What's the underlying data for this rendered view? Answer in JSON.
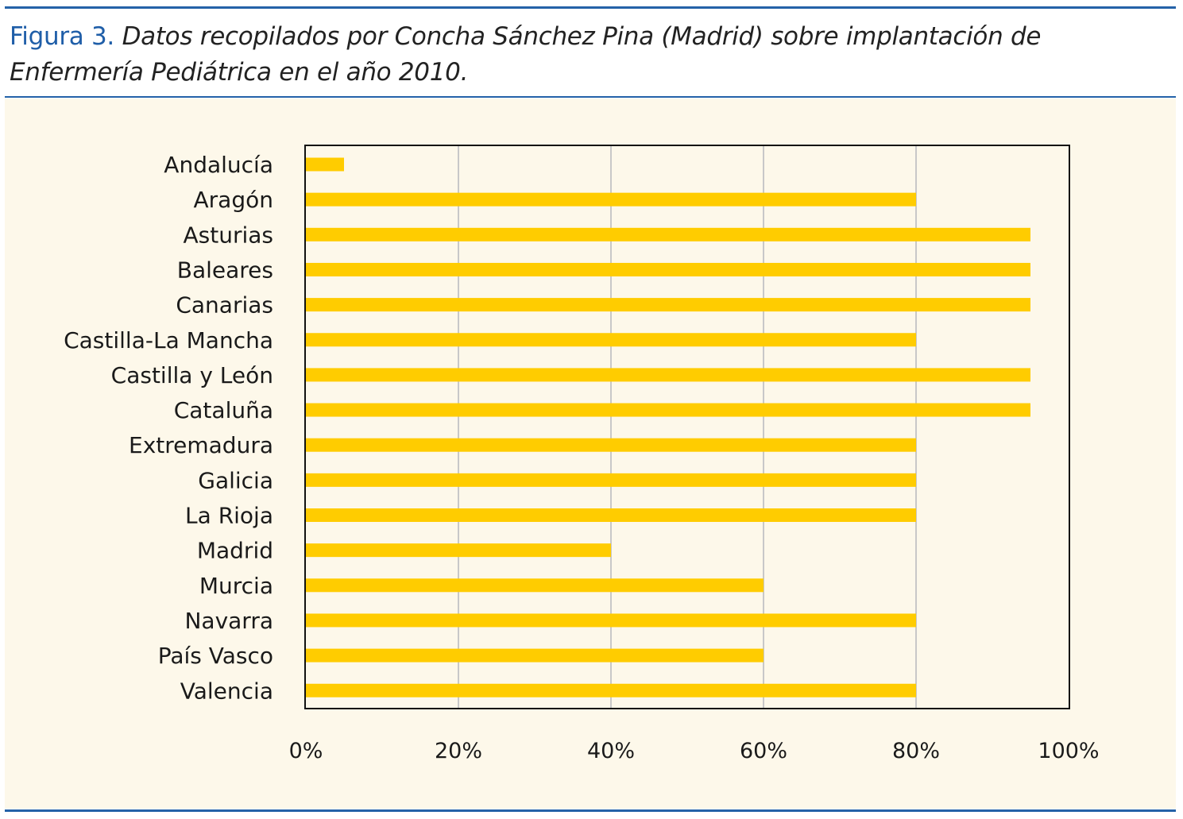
{
  "figure": {
    "label": "Figura 3.",
    "caption": "Datos recopilados por Concha Sánchez Pina (Madrid) sobre implantación de Enfermería Pediátrica en el año 2010."
  },
  "colors": {
    "bar": "#ffcc00",
    "rule": "#2462a8",
    "panel": "#fdf8ea",
    "grid": "#c8c8c8"
  },
  "chart_data": {
    "type": "bar",
    "orientation": "horizontal",
    "title": "",
    "xlabel": "",
    "ylabel": "",
    "xlim": [
      0,
      100
    ],
    "grid": "vertical",
    "categories": [
      "Andalucía",
      "Aragón",
      "Asturias",
      "Baleares",
      "Canarias",
      "Castilla-La Mancha",
      "Castilla y León",
      "Cataluña",
      "Extremadura",
      "Galicia",
      "La Rioja",
      "Madrid",
      "Murcia",
      "Navarra",
      "País Vasco",
      "Valencia"
    ],
    "values": [
      5,
      80,
      95,
      95,
      95,
      80,
      95,
      95,
      80,
      80,
      80,
      40,
      60,
      80,
      60,
      80
    ],
    "ticks": [
      0,
      20,
      40,
      60,
      80,
      100
    ],
    "tick_labels": [
      "0%",
      "20%",
      "40%",
      "60%",
      "80%",
      "100%"
    ]
  }
}
